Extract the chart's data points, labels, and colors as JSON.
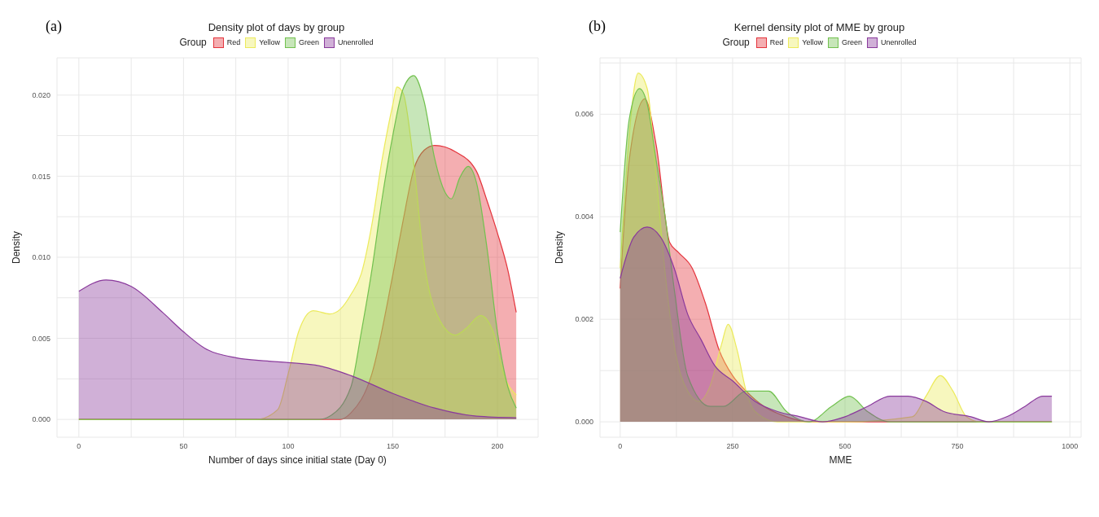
{
  "chart_data": [
    {
      "type": "area",
      "title": "Density plot of days by group",
      "xlabel": "Number of days since initial state (Day 0)",
      "ylabel": "Density",
      "legend_title": "Group",
      "legend": "top",
      "grid": true,
      "annotations": [
        "(a)"
      ],
      "xlim": [
        -10.45,
        219.45
      ],
      "xticks": [
        0,
        {
          "value": 25,
          "label": null
        },
        50,
        {
          "value": 75,
          "label": null
        },
        100,
        {
          "value": 125,
          "label": null
        },
        150,
        {
          "value": 175,
          "label": null
        },
        200
      ],
      "ylim": [
        -0.0011,
        0.0223
      ],
      "yticks": [
        {
          "value": 0,
          "label": "0.000"
        },
        {
          "value": 0.0025,
          "label": null
        },
        {
          "value": 0.005,
          "label": "0.005"
        },
        {
          "value": 0.0075,
          "label": null
        },
        {
          "value": 0.01,
          "label": "0.010"
        },
        {
          "value": 0.0125,
          "label": null
        },
        {
          "value": 0.015,
          "label": "0.015"
        },
        {
          "value": 0.0175,
          "label": null
        },
        {
          "value": 0.02,
          "label": "0.020"
        }
      ],
      "series": [
        {
          "name": "Red",
          "color": "#e4343c",
          "x": [
            0,
            50,
            100,
            125,
            130,
            140,
            150,
            155,
            160,
            165,
            170,
            175,
            180,
            190,
            195,
            200,
            205,
            209
          ],
          "values": [
            0,
            0,
            0,
            0,
            0.0004,
            0.0028,
            0.0089,
            0.0123,
            0.0154,
            0.0166,
            0.0169,
            0.0168,
            0.0165,
            0.0153,
            0.0135,
            0.0115,
            0.0092,
            0.0066
          ]
        },
        {
          "name": "Yellow",
          "color": "#ecea5c",
          "x": [
            0,
            50,
            85,
            95,
            100,
            105,
            112,
            120,
            125,
            130,
            135,
            140,
            145,
            150,
            152,
            155,
            160,
            165,
            170,
            180,
            185,
            192,
            198,
            203,
            209
          ],
          "values": [
            0,
            0,
            0,
            0.0006,
            0.0028,
            0.0054,
            0.0067,
            0.0065,
            0.0068,
            0.0077,
            0.009,
            0.012,
            0.0161,
            0.0194,
            0.0205,
            0.0201,
            0.0158,
            0.0097,
            0.0068,
            0.0052,
            0.0056,
            0.0064,
            0.0054,
            0.0028,
            0.0015
          ]
        },
        {
          "name": "Green",
          "color": "#72c14f",
          "x": [
            0,
            50,
            100,
            115,
            120,
            130,
            135,
            140,
            145,
            150,
            155,
            160,
            165,
            170,
            175,
            178,
            182,
            186,
            190,
            195,
            200,
            205,
            209
          ],
          "values": [
            0,
            0,
            0,
            0,
            0.0002,
            0.002,
            0.0054,
            0.0092,
            0.0137,
            0.0175,
            0.0204,
            0.0212,
            0.0196,
            0.0161,
            0.014,
            0.0136,
            0.0149,
            0.0156,
            0.0146,
            0.0106,
            0.0054,
            0.002,
            0.0007
          ]
        },
        {
          "name": "Unenrolled",
          "color": "#8a3a9c",
          "x": [
            0,
            13,
            25,
            40,
            50,
            60,
            75,
            90,
            100,
            115,
            130,
            150,
            170,
            190,
            209
          ],
          "values": [
            0.0079,
            0.0086,
            0.0082,
            0.0066,
            0.0054,
            0.0044,
            0.0038,
            0.0036,
            0.0035,
            0.0033,
            0.0027,
            0.0016,
            0.0007,
            0.0002,
            0.0001
          ]
        }
      ]
    },
    {
      "type": "area",
      "title": "Kernel density plot of MME by group",
      "xlabel": "MME",
      "ylabel": "Density",
      "legend_title": "Group",
      "legend": "top",
      "grid": true,
      "annotations": [
        "(b)"
      ],
      "xlim": [
        -45,
        1025
      ],
      "xticks": [
        0,
        {
          "value": 125,
          "label": null
        },
        250,
        {
          "value": 375,
          "label": null
        },
        500,
        {
          "value": 625,
          "label": null
        },
        750,
        {
          "value": 875,
          "label": null
        },
        1000
      ],
      "ylim": [
        -0.0003,
        0.0071
      ],
      "yticks": [
        {
          "value": 0,
          "label": "0.000"
        },
        {
          "value": 0.001,
          "label": null
        },
        {
          "value": 0.002,
          "label": "0.002"
        },
        {
          "value": 0.003,
          "label": null
        },
        {
          "value": 0.004,
          "label": "0.004"
        },
        {
          "value": 0.005,
          "label": null
        },
        {
          "value": 0.006,
          "label": "0.006"
        },
        {
          "value": 0.007,
          "label": null
        }
      ],
      "series": [
        {
          "name": "Red",
          "color": "#e4343c",
          "x": [
            0,
            20,
            55,
            80,
            110,
            130,
            160,
            190,
            220,
            250,
            280,
            320,
            370,
            420,
            600,
            960
          ],
          "values": [
            0.0026,
            0.0051,
            0.0063,
            0.0054,
            0.0035,
            0.0033,
            0.003,
            0.0023,
            0.0014,
            0.0009,
            0.0006,
            0.0003,
            0.0001,
            0,
            0,
            0
          ]
        },
        {
          "name": "Yellow",
          "color": "#ecea5c",
          "x": [
            0,
            20,
            40,
            60,
            80,
            100,
            120,
            150,
            175,
            200,
            225,
            240,
            260,
            280,
            300,
            350,
            500,
            650,
            680,
            712,
            740,
            770,
            800,
            960
          ],
          "values": [
            0.003,
            0.0056,
            0.0068,
            0.0065,
            0.0048,
            0.0029,
            0.0015,
            0.0006,
            0.0004,
            0.0007,
            0.0015,
            0.0019,
            0.0014,
            0.0006,
            0.0002,
            0,
            0,
            0.0001,
            0.0005,
            0.0009,
            0.0006,
            0.0001,
            0,
            0
          ]
        },
        {
          "name": "Green",
          "color": "#72c14f",
          "x": [
            0,
            20,
            43,
            60,
            80,
            100,
            120,
            150,
            200,
            230,
            280,
            330,
            370,
            420,
            470,
            510,
            550,
            600,
            960
          ],
          "values": [
            0.0037,
            0.0059,
            0.0065,
            0.0062,
            0.0051,
            0.004,
            0.0026,
            0.0009,
            0.0003,
            0.0003,
            0.0006,
            0.0006,
            0.0002,
            0,
            0.0003,
            0.0005,
            0.0002,
            0,
            0
          ]
        },
        {
          "name": "Unenrolled",
          "color": "#8a3a9c",
          "x": [
            0,
            30,
            60,
            90,
            120,
            150,
            180,
            210,
            250,
            300,
            350,
            400,
            450,
            500,
            550,
            600,
            640,
            680,
            720,
            780,
            820,
            860,
            900,
            940,
            960
          ],
          "values": [
            0.0028,
            0.0036,
            0.0038,
            0.0036,
            0.003,
            0.0021,
            0.0016,
            0.0011,
            0.0008,
            0.0004,
            0.0002,
            0.0001,
            0,
            0.0001,
            0.0003,
            0.0005,
            0.0005,
            0.0004,
            0.0002,
            0.0001,
            0,
            0.0001,
            0.0003,
            0.0005,
            0.0005
          ]
        }
      ]
    }
  ]
}
